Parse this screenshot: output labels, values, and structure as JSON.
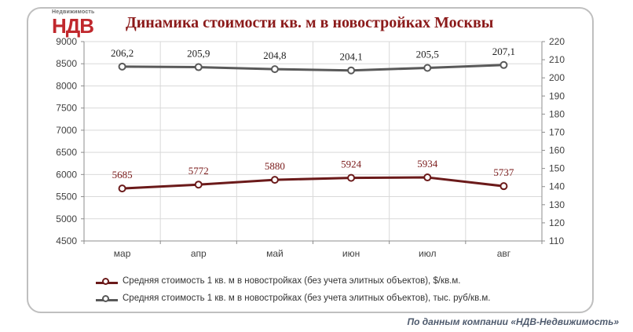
{
  "title": "Динамика стоимости кв. м в новостройках Москвы",
  "logo": {
    "top_text": "Недвижимость",
    "main_text": "НДВ"
  },
  "source": "По данным компании «НДВ-Недвижимость»",
  "colors": {
    "series_usd": "#6b1a1a",
    "series_rub": "#595959",
    "title": "#8b1a1a",
    "grid": "#d9d9d9"
  },
  "chart_data": {
    "type": "line",
    "title": "Динамика стоимости кв. м в новостройках Москвы",
    "categories": [
      "мар",
      "апр",
      "май",
      "июн",
      "июл",
      "авг"
    ],
    "left_axis": {
      "min": 4500,
      "max": 9000,
      "step": 500,
      "ticks": [
        "4500",
        "5000",
        "5500",
        "6000",
        "6500",
        "7000",
        "7500",
        "8000",
        "8500",
        "9000"
      ]
    },
    "right_axis": {
      "min": 110,
      "max": 220,
      "step": 10,
      "ticks": [
        "110",
        "120",
        "130",
        "140",
        "150",
        "160",
        "170",
        "180",
        "190",
        "200",
        "210",
        "220"
      ]
    },
    "grid": true,
    "legend_position": "bottom",
    "series": [
      {
        "name": "Средняя стоимость 1 кв. м в новостройках (без учета элитных объектов), $/кв.м.",
        "axis": "left",
        "values": [
          5685,
          5772,
          5880,
          5924,
          5934,
          5737
        ],
        "labels": [
          "5685",
          "5772",
          "5880",
          "5924",
          "5934",
          "5737"
        ]
      },
      {
        "name": "Средняя стоимость 1 кв. м в новостройках (без учета элитных объектов), тыс. руб/кв.м.",
        "axis": "right",
        "values": [
          206.2,
          205.9,
          204.8,
          204.1,
          205.5,
          207.1
        ],
        "labels": [
          "206,2",
          "205,9",
          "204,8",
          "204,1",
          "205,5",
          "207,1"
        ]
      }
    ]
  }
}
